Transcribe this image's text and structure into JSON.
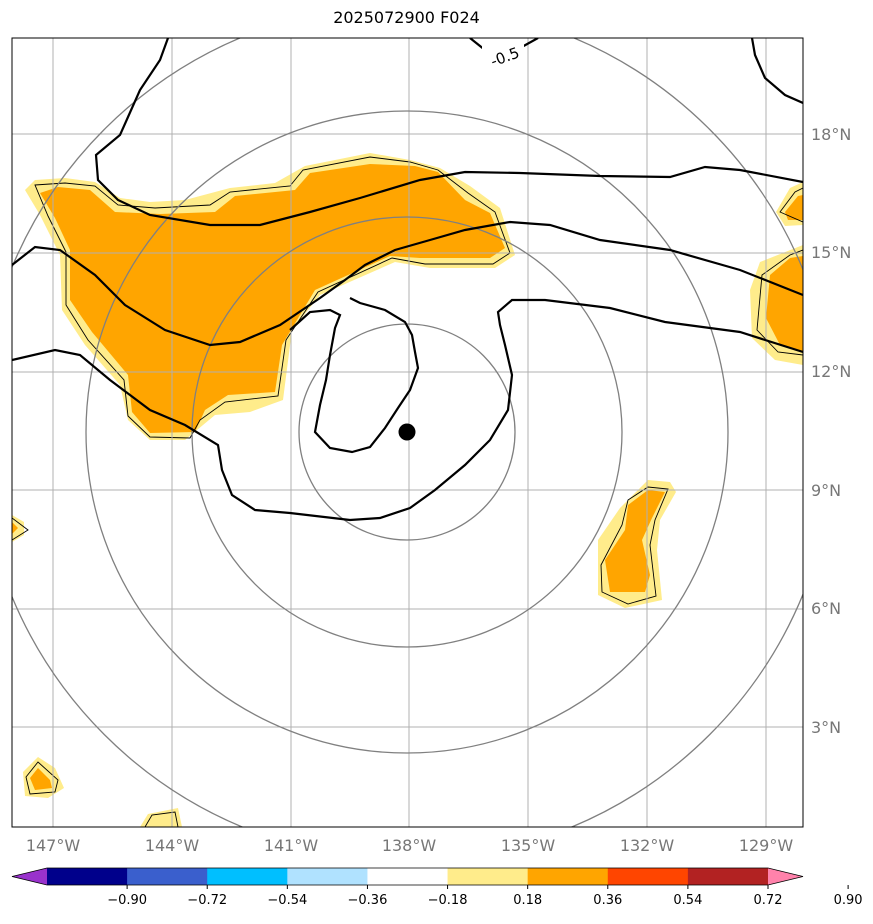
{
  "title": "2025072900 F024",
  "map": {
    "lon_labels": [
      "147°W",
      "144°W",
      "141°W",
      "138°W",
      "135°W",
      "132°W",
      "129°W"
    ],
    "lat_labels": [
      "3°N",
      "6°N",
      "9°N",
      "12°N",
      "15°N",
      "18°N"
    ],
    "contour_label": "-0.5",
    "storm_center": {
      "lon": -138,
      "lat": 10.5
    }
  },
  "colorbar": {
    "colors": [
      "#9932cc",
      "#00008b",
      "#3a5fcd",
      "#00bfff",
      "#b0e2ff",
      "#ffffff",
      "#ffec8b",
      "#ffa500",
      "#ff4500",
      "#b22222",
      "#ff82ab"
    ],
    "ticks": [
      "−0.90",
      "−0.72",
      "−0.54",
      "−0.36",
      "−0.18",
      "0.18",
      "0.36",
      "0.54",
      "0.72",
      "0.90"
    ]
  },
  "colors": {
    "shade_light": "#ffec8b",
    "shade_mid": "#ffa500",
    "grid": "#b0b0b0",
    "range_ring": "#808080"
  }
}
